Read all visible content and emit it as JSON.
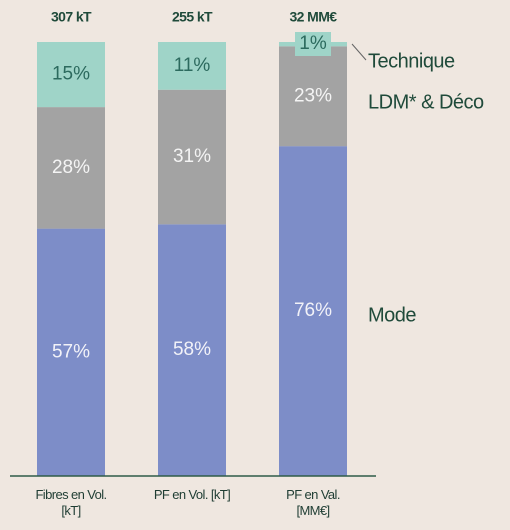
{
  "chart_data": {
    "type": "stacked_bar",
    "categories": [
      "Fibres en Vol.[kT]",
      "PF en Vol. [kT]",
      "PF en Val. [MM€]"
    ],
    "totals": [
      "307 kT",
      "255 kT",
      "32 MM€"
    ],
    "ylim": [
      0,
      100
    ],
    "series": [
      {
        "name": "Mode",
        "color": "#7d8dc8",
        "values": [
          57,
          58,
          76
        ],
        "value_labels": [
          "57%",
          "58%",
          "76%"
        ]
      },
      {
        "name": "LDM* & Déco",
        "color": "#a3a3a3",
        "values": [
          28,
          31,
          23
        ],
        "value_labels": [
          "28%",
          "31%",
          "23%"
        ]
      },
      {
        "name": "Technique",
        "color": "#9fd4c8",
        "values": [
          15,
          11,
          1
        ],
        "value_labels": [
          "15%",
          "11%",
          "1%"
        ]
      }
    ]
  }
}
